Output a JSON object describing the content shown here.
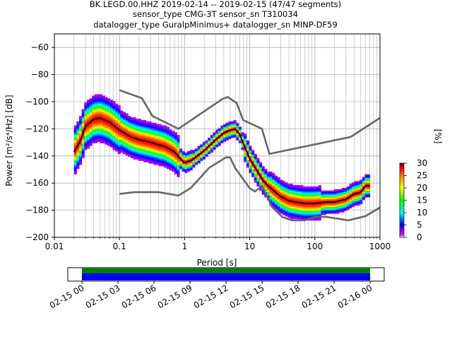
{
  "title_lines": [
    "BK.LEGD.00.HHZ   2019-02-14 -- 2019-02-15  (47/47 segments)",
    "sensor_type CMG-3T sensor_sn T310034",
    "datalogger_type GuralpMinimus+ datalogger_sn MINP-DF59"
  ],
  "chart_data": [
    {
      "type": "heatmap",
      "xlabel": "Period [s]",
      "ylabel": "Power [m²/s⁴/Hz] [dB]",
      "xscale": "log",
      "xlim": [
        0.01,
        1000
      ],
      "ylim": [
        -200,
        -50
      ],
      "x_tick_labels": [
        "0.01",
        "0.1",
        "1",
        "10",
        "100",
        "1000"
      ],
      "y_ticks": [
        -200,
        -180,
        -160,
        -140,
        -120,
        -100,
        -80,
        -60
      ],
      "grid": true,
      "colorbar": {
        "label": "[%]",
        "ticks": [
          0,
          5,
          10,
          15,
          20,
          25,
          30
        ],
        "range": [
          0,
          30
        ],
        "colormap": "pqlx"
      },
      "noise_model_high": {
        "x": [
          0.1,
          0.22,
          0.32,
          0.8,
          3.8,
          4.6,
          6.3,
          7.9,
          15.4,
          20,
          354.8,
          1000
        ],
        "y": [
          -91.5,
          -97.4,
          -110.5,
          -120,
          -98,
          -96.5,
          -101,
          -113.5,
          -120,
          -138.5,
          -126,
          -112
        ]
      },
      "noise_model_low": {
        "x": [
          0.1,
          0.17,
          0.4,
          0.8,
          1.24,
          2.4,
          4.3,
          5.0,
          6.0,
          10.0,
          12.0,
          15.6,
          21.9,
          31.6,
          45,
          70,
          101,
          154,
          328,
          600,
          1000
        ],
        "y": [
          -168,
          -166.7,
          -166.7,
          -169.2,
          -163.7,
          -148.6,
          -141.1,
          -141.1,
          -149.0,
          -163.8,
          -166.2,
          -162.1,
          -177.5,
          -185.0,
          -187.5,
          -187.5,
          -185.0,
          -185.0,
          -187.5,
          -184.4,
          -178.0
        ]
      },
      "mode_curve": {
        "x": [
          0.02,
          0.025,
          0.03,
          0.04,
          0.05,
          0.07,
          0.1,
          0.15,
          0.2,
          0.3,
          0.5,
          0.7,
          0.9,
          1.0,
          1.3,
          2.0,
          3.0,
          4.0,
          5.0,
          6.0,
          7.0,
          8.0,
          10.0,
          13.0,
          16.0,
          20.0,
          30.0,
          40.0,
          50.0,
          70.0,
          100.0,
          150.0,
          200.0,
          300.0,
          400.0,
          500.0,
          600.0,
          700.0
        ],
        "y": [
          -137,
          -129,
          -118,
          -113,
          -112,
          -115,
          -121,
          -126,
          -128,
          -130,
          -133,
          -137,
          -143,
          -145,
          -143,
          -136,
          -128,
          -123,
          -121,
          -120,
          -124,
          -131,
          -142,
          -151,
          -158,
          -163,
          -170,
          -173,
          -174,
          -175,
          -175,
          -174,
          -174,
          -172,
          -168,
          -167,
          -162,
          -162
        ]
      }
    },
    {
      "type": "timeline",
      "categories": [
        "02-15 00",
        "02-15 03",
        "02-15 06",
        "02-15 09",
        "02-15 12",
        "02-15 15",
        "02-15 18",
        "02-15 21",
        "02-16 00"
      ],
      "start": "02-15 00",
      "end": "02-16 00",
      "colors": {
        "top": "#008000",
        "bottom": "#0000ff"
      }
    }
  ]
}
